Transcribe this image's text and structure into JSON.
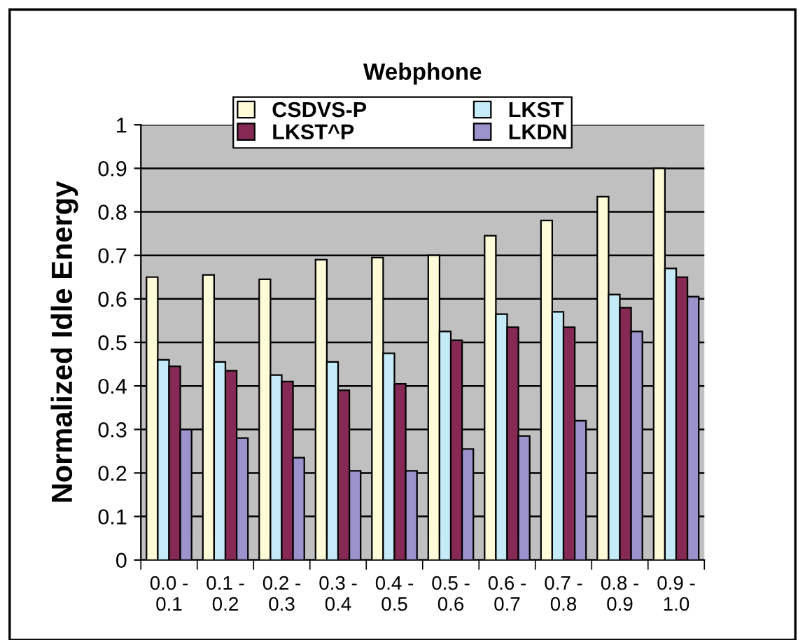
{
  "chart_data": {
    "type": "bar",
    "title": "Webphone",
    "ylabel": "Normalized Idle Energy",
    "categories": [
      "0.0 -\n0.1",
      "0.1 -\n0.2",
      "0.2 -\n0.3",
      "0.3 -\n0.4",
      "0.4 -\n0.5",
      "0.5 -\n0.6",
      "0.6 -\n0.7",
      "0.7 -\n0.8",
      "0.8 -\n0.9",
      "0.9 -\n1.0"
    ],
    "series": [
      {
        "name": "CSDVS-P",
        "color": "#fffbd8",
        "values": [
          0.65,
          0.655,
          0.645,
          0.69,
          0.695,
          0.7,
          0.745,
          0.78,
          0.835,
          0.9
        ]
      },
      {
        "name": "LKST",
        "color": "#c6ebf8",
        "values": [
          0.46,
          0.455,
          0.425,
          0.455,
          0.475,
          0.525,
          0.565,
          0.57,
          0.61,
          0.67
        ]
      },
      {
        "name": "LKST^P",
        "color": "#862a55",
        "values": [
          0.445,
          0.435,
          0.41,
          0.39,
          0.405,
          0.505,
          0.535,
          0.535,
          0.58,
          0.65
        ]
      },
      {
        "name": "LKDN",
        "color": "#9c93cc",
        "values": [
          0.3,
          0.28,
          0.235,
          0.205,
          0.205,
          0.255,
          0.285,
          0.32,
          0.525,
          0.605
        ]
      }
    ],
    "ylim": [
      0,
      1
    ],
    "yticks": [
      0,
      0.1,
      0.2,
      0.3,
      0.4,
      0.5,
      0.6,
      0.7,
      0.8,
      0.9,
      1
    ],
    "grid": "y",
    "legend": "top"
  }
}
